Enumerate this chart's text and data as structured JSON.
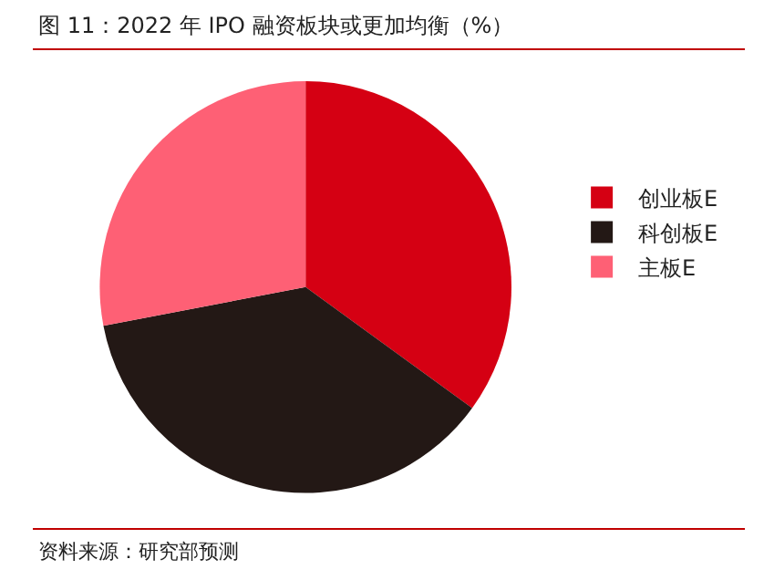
{
  "chart_data": {
    "type": "pie",
    "title": "图 11：2022 年 IPO 融资板块或更加均衡（%）",
    "categories": [
      "创业板E",
      "科创板E",
      "主板E"
    ],
    "values": [
      35,
      37,
      28
    ],
    "colors": [
      "#d50013",
      "#231815",
      "#fe6075"
    ],
    "legend": "right",
    "annotations": [
      "资料来源：研究部预测"
    ]
  }
}
